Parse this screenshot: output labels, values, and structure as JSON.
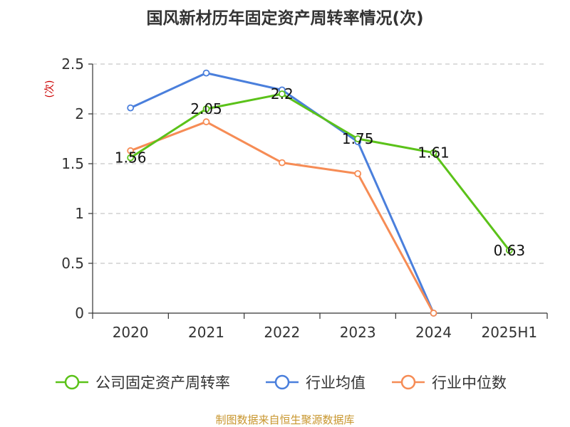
{
  "title": "国风新材历年固定资产周转率情况(次)",
  "source": "制图数据来自恒生聚源数据库",
  "chart_data": {
    "type": "line",
    "title": "国风新材历年固定资产周转率情况(次)",
    "ylabel": "(次)",
    "xlabel": "",
    "categories": [
      "2020",
      "2021",
      "2022",
      "2023",
      "2024",
      "2025H1"
    ],
    "ylim": [
      0,
      2.5
    ],
    "yticks": [
      "0",
      "0.5",
      "1",
      "1.5",
      "2",
      "2.5"
    ],
    "grid": true,
    "legend_position": "bottom",
    "series": [
      {
        "name": "公司固定资产周转率",
        "color": "#5bc219",
        "values": [
          1.56,
          2.05,
          2.2,
          1.75,
          1.61,
          0.63
        ],
        "labels": [
          "1.56",
          "2.05",
          "2.2",
          "1.75",
          "1.61",
          "0.63"
        ]
      },
      {
        "name": "行业均值",
        "color": "#4a7fdc",
        "values": [
          2.06,
          2.41,
          2.24,
          1.72,
          0,
          null
        ]
      },
      {
        "name": "行业中位数",
        "color": "#f68c55",
        "values": [
          1.63,
          1.92,
          1.51,
          1.4,
          0,
          null
        ]
      }
    ]
  }
}
